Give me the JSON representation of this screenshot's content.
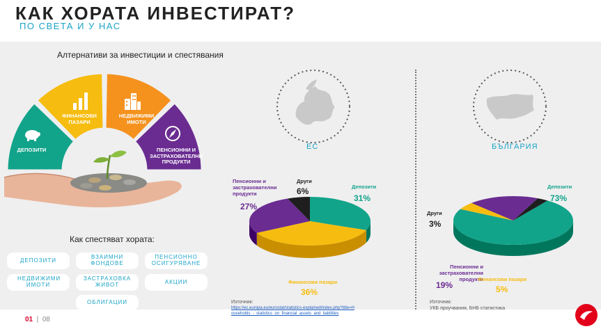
{
  "header": {
    "title": "КАК ХОРАТА ИНВЕСТИРАТ?",
    "subtitle": "ПО СВЕТА И У НАС"
  },
  "alternatives": {
    "title": "Алтернативи за инвестиции и спестявания",
    "segments": [
      {
        "label": "ДЕПОЗИТИ",
        "color": "#12a48a",
        "icon": "piggy-bank-icon"
      },
      {
        "label": "ФИНАНСОВИ ПАЗАРИ",
        "color": "#f6bc0f",
        "icon": "bar-chart-icon"
      },
      {
        "label": "НЕДВИЖИМИ ИМОТИ",
        "color": "#f5921e",
        "icon": "buildings-icon"
      },
      {
        "label": "ПЕНСИОННИ И ЗАСТРАХОВАТЕЛНИ ПРОДУКТИ",
        "color": "#6a2c91",
        "icon": "compass-icon"
      }
    ]
  },
  "savings": {
    "title": "Как спестяват хората:",
    "items": [
      "ДЕПОЗИТИ",
      "ВЗАИМНИ ФОНДОВЕ",
      "ПЕНСИОННО ОСИГУРЯВАНЕ",
      "НЕДВИЖИМИ ИМОТИ",
      "ЗАСТРАХОВКА ЖИВОТ",
      "АКЦИИ",
      "ОБЛИГАЦИИ"
    ]
  },
  "eu": {
    "region": "ЕС",
    "icon": "europe-map-icon",
    "source_label": "Източник:",
    "source_link": "https://ec.europa.eu/eurostat/statistics-explained/index.php?title=Households_-_statistics_on_financial_assets_and_liabilities"
  },
  "bg": {
    "region": "БЪЛГАРИЯ",
    "icon": "bulgaria-map-icon",
    "source_label": "Източник:",
    "source_text": "УКБ проучвания, БНБ статистика"
  },
  "chart_data": [
    {
      "type": "pie",
      "title": "ЕС",
      "categories": [
        "Депозити",
        "Финансови пазари",
        "Пенсионни и застрахователни продукти",
        "Други"
      ],
      "values": [
        31,
        36,
        27,
        6
      ],
      "labels": [
        "31%",
        "36%",
        "27%",
        "6%"
      ],
      "colors": [
        "#12a48a",
        "#f6bc0f",
        "#6a2c91",
        "#1e1e1e"
      ]
    },
    {
      "type": "pie",
      "title": "БЪЛГАРИЯ",
      "categories": [
        "Депозити",
        "Финансови пазари",
        "Пенсионни и застрахователни продукти",
        "Други"
      ],
      "values": [
        73,
        5,
        19,
        3
      ],
      "labels": [
        "73%",
        "5%",
        "19%",
        "3%"
      ],
      "colors": [
        "#12a48a",
        "#f6bc0f",
        "#6a2c91",
        "#1e1e1e"
      ]
    }
  ],
  "footer": {
    "page": "01",
    "total": "08"
  }
}
